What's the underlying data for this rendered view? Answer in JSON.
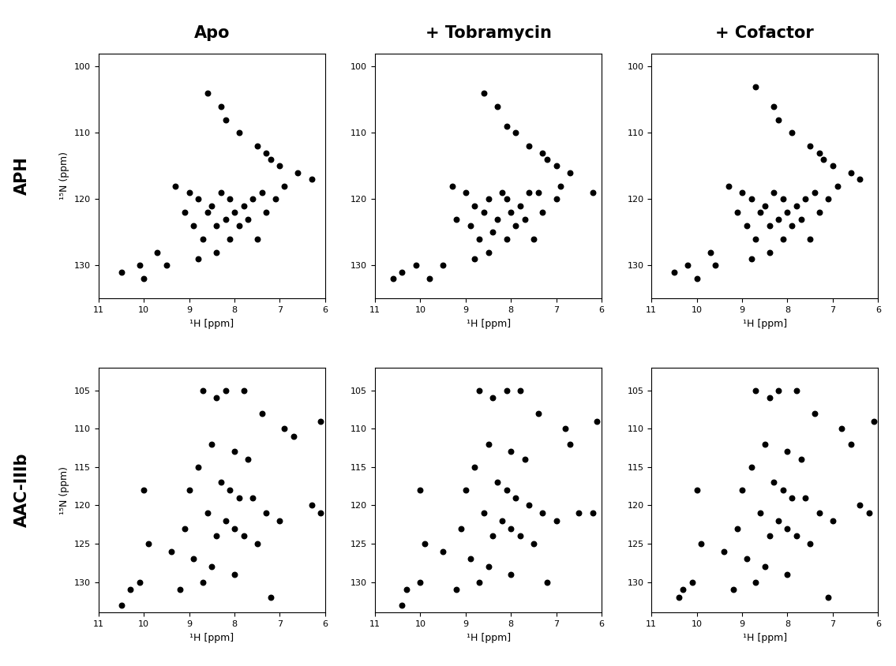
{
  "row_labels": [
    "APH",
    "AAC-IIIb"
  ],
  "chart_data": [
    {
      "type": "scatter",
      "title": "Apo",
      "x_label": "¹H [ppm]",
      "y_label": "¹⁵N (ppm)",
      "xlim": [
        11,
        6
      ],
      "ylim": [
        135,
        98
      ],
      "xticks": [
        11,
        10,
        9,
        8,
        7,
        6
      ],
      "yticks": [
        100,
        110,
        120,
        130
      ],
      "color": "#000000",
      "marker": "o",
      "x": [
        8.6,
        8.3,
        8.2,
        7.9,
        7.5,
        7.3,
        7.2,
        7.0,
        6.6,
        9.3,
        9.0,
        8.8,
        8.5,
        8.3,
        8.1,
        8.0,
        7.8,
        7.6,
        7.4,
        8.2,
        8.4,
        7.9,
        7.7,
        8.6,
        8.9,
        7.3,
        7.1,
        6.9,
        9.1,
        8.7,
        8.1,
        7.5,
        8.4,
        8.8,
        10.5,
        10.1,
        10.0,
        9.5,
        6.3,
        9.7
      ],
      "values": [
        104,
        106,
        108,
        110,
        112,
        113,
        114,
        115,
        116,
        118,
        119,
        120,
        121,
        119,
        120,
        122,
        121,
        120,
        119,
        123,
        124,
        124,
        123,
        122,
        124,
        122,
        120,
        118,
        122,
        126,
        126,
        126,
        128,
        129,
        131,
        130,
        132,
        130,
        117,
        128
      ]
    },
    {
      "type": "scatter",
      "title": "+ Tobramycin",
      "x_label": "¹H [ppm]",
      "xlim": [
        11,
        6
      ],
      "ylim": [
        135,
        98
      ],
      "xticks": [
        11,
        10,
        9,
        8,
        7,
        6
      ],
      "yticks": [
        100,
        110,
        120,
        130
      ],
      "color": "#000000",
      "marker": "o",
      "x": [
        8.6,
        8.3,
        8.1,
        7.9,
        7.6,
        7.3,
        7.2,
        7.0,
        6.7,
        9.3,
        9.0,
        8.8,
        8.5,
        8.2,
        8.1,
        8.0,
        7.8,
        7.6,
        7.4,
        8.3,
        8.4,
        7.9,
        7.7,
        8.6,
        8.9,
        7.3,
        7.0,
        6.9,
        9.2,
        8.7,
        8.1,
        7.5,
        8.5,
        8.8,
        10.4,
        10.1,
        9.8,
        9.5,
        6.2,
        10.6
      ],
      "values": [
        104,
        106,
        109,
        110,
        112,
        113,
        114,
        115,
        116,
        118,
        119,
        121,
        120,
        119,
        120,
        122,
        121,
        119,
        119,
        123,
        125,
        124,
        123,
        122,
        124,
        122,
        120,
        118,
        123,
        126,
        126,
        126,
        128,
        129,
        131,
        130,
        132,
        130,
        119,
        132
      ]
    },
    {
      "type": "scatter",
      "title": "+ Cofactor",
      "x_label": "¹H [ppm]",
      "xlim": [
        11,
        6
      ],
      "ylim": [
        135,
        98
      ],
      "xticks": [
        11,
        10,
        9,
        8,
        7,
        6
      ],
      "yticks": [
        100,
        110,
        120,
        130
      ],
      "color": "#000000",
      "marker": "o",
      "x": [
        8.7,
        8.3,
        8.2,
        7.9,
        7.5,
        7.3,
        7.2,
        7.0,
        6.6,
        9.3,
        9.0,
        8.8,
        8.5,
        8.3,
        8.1,
        8.0,
        7.8,
        7.6,
        7.4,
        8.2,
        8.4,
        7.9,
        7.7,
        8.6,
        8.9,
        7.3,
        7.1,
        6.9,
        9.1,
        8.7,
        8.1,
        7.5,
        8.4,
        8.8,
        10.5,
        10.2,
        10.0,
        9.6,
        6.4,
        9.7
      ],
      "values": [
        103,
        106,
        108,
        110,
        112,
        113,
        114,
        115,
        116,
        118,
        119,
        120,
        121,
        119,
        120,
        122,
        121,
        120,
        119,
        123,
        124,
        124,
        123,
        122,
        124,
        122,
        120,
        118,
        122,
        126,
        126,
        126,
        128,
        129,
        131,
        130,
        132,
        130,
        117,
        128
      ]
    },
    {
      "type": "scatter",
      "x_label": "¹H [ppm]",
      "y_label": "¹⁵N (ppm)",
      "xlim": [
        11,
        6
      ],
      "ylim": [
        134,
        102
      ],
      "xticks": [
        11,
        10,
        9,
        8,
        7,
        6
      ],
      "yticks": [
        105,
        110,
        115,
        120,
        125,
        130
      ],
      "color": "#000000",
      "marker": "o",
      "x": [
        8.7,
        8.4,
        8.2,
        7.8,
        7.4,
        6.9,
        6.7,
        6.1,
        8.5,
        8.0,
        7.7,
        8.8,
        9.0,
        8.3,
        8.1,
        7.9,
        7.6,
        7.3,
        7.0,
        6.1,
        8.6,
        8.2,
        8.0,
        8.4,
        7.8,
        7.5,
        9.1,
        9.4,
        8.9,
        8.5,
        8.0,
        8.7,
        9.2,
        10.3,
        10.1,
        10.5,
        9.9,
        10.0,
        7.2,
        6.3
      ],
      "values": [
        105,
        106,
        105,
        105,
        108,
        110,
        111,
        109,
        112,
        113,
        114,
        115,
        118,
        117,
        118,
        119,
        119,
        121,
        122,
        121,
        121,
        122,
        123,
        124,
        124,
        125,
        123,
        126,
        127,
        128,
        129,
        130,
        131,
        131,
        130,
        133,
        125,
        118,
        132,
        120
      ]
    },
    {
      "type": "scatter",
      "x_label": "¹H [ppm]",
      "xlim": [
        11,
        6
      ],
      "ylim": [
        134,
        102
      ],
      "xticks": [
        11,
        10,
        9,
        8,
        7,
        6
      ],
      "yticks": [
        105,
        110,
        115,
        120,
        125,
        130
      ],
      "color": "#000000",
      "marker": "o",
      "x": [
        8.7,
        8.4,
        8.1,
        7.8,
        7.4,
        6.8,
        6.7,
        6.1,
        8.5,
        8.0,
        7.7,
        8.8,
        9.0,
        8.3,
        8.1,
        7.9,
        7.6,
        7.3,
        7.0,
        6.2,
        8.6,
        8.2,
        8.0,
        8.4,
        7.8,
        7.5,
        9.1,
        9.5,
        8.9,
        8.5,
        8.0,
        8.7,
        9.2,
        10.3,
        10.0,
        10.4,
        9.9,
        10.0,
        7.2,
        6.5
      ],
      "values": [
        105,
        106,
        105,
        105,
        108,
        110,
        112,
        109,
        112,
        113,
        114,
        115,
        118,
        117,
        118,
        119,
        120,
        121,
        122,
        121,
        121,
        122,
        123,
        124,
        124,
        125,
        123,
        126,
        127,
        128,
        129,
        130,
        131,
        131,
        130,
        133,
        125,
        118,
        130,
        121
      ]
    },
    {
      "type": "scatter",
      "x_label": "¹H [ppm]",
      "xlim": [
        11,
        6
      ],
      "ylim": [
        134,
        102
      ],
      "xticks": [
        11,
        10,
        9,
        8,
        7,
        6
      ],
      "yticks": [
        105,
        110,
        115,
        120,
        125,
        130
      ],
      "color": "#000000",
      "marker": "o",
      "x": [
        8.7,
        8.4,
        8.2,
        7.8,
        7.4,
        6.8,
        6.6,
        6.1,
        8.5,
        8.0,
        7.7,
        8.8,
        9.0,
        8.3,
        8.1,
        7.9,
        7.6,
        7.3,
        7.0,
        6.2,
        8.6,
        8.2,
        8.0,
        8.4,
        7.8,
        7.5,
        9.1,
        9.4,
        8.9,
        8.5,
        8.0,
        8.7,
        9.2,
        10.3,
        10.1,
        10.4,
        9.9,
        10.0,
        7.1,
        6.4
      ],
      "values": [
        105,
        106,
        105,
        105,
        108,
        110,
        112,
        109,
        112,
        113,
        114,
        115,
        118,
        117,
        118,
        119,
        119,
        121,
        122,
        121,
        121,
        122,
        123,
        124,
        124,
        125,
        123,
        126,
        127,
        128,
        129,
        130,
        131,
        131,
        130,
        132,
        125,
        118,
        132,
        120
      ]
    }
  ]
}
